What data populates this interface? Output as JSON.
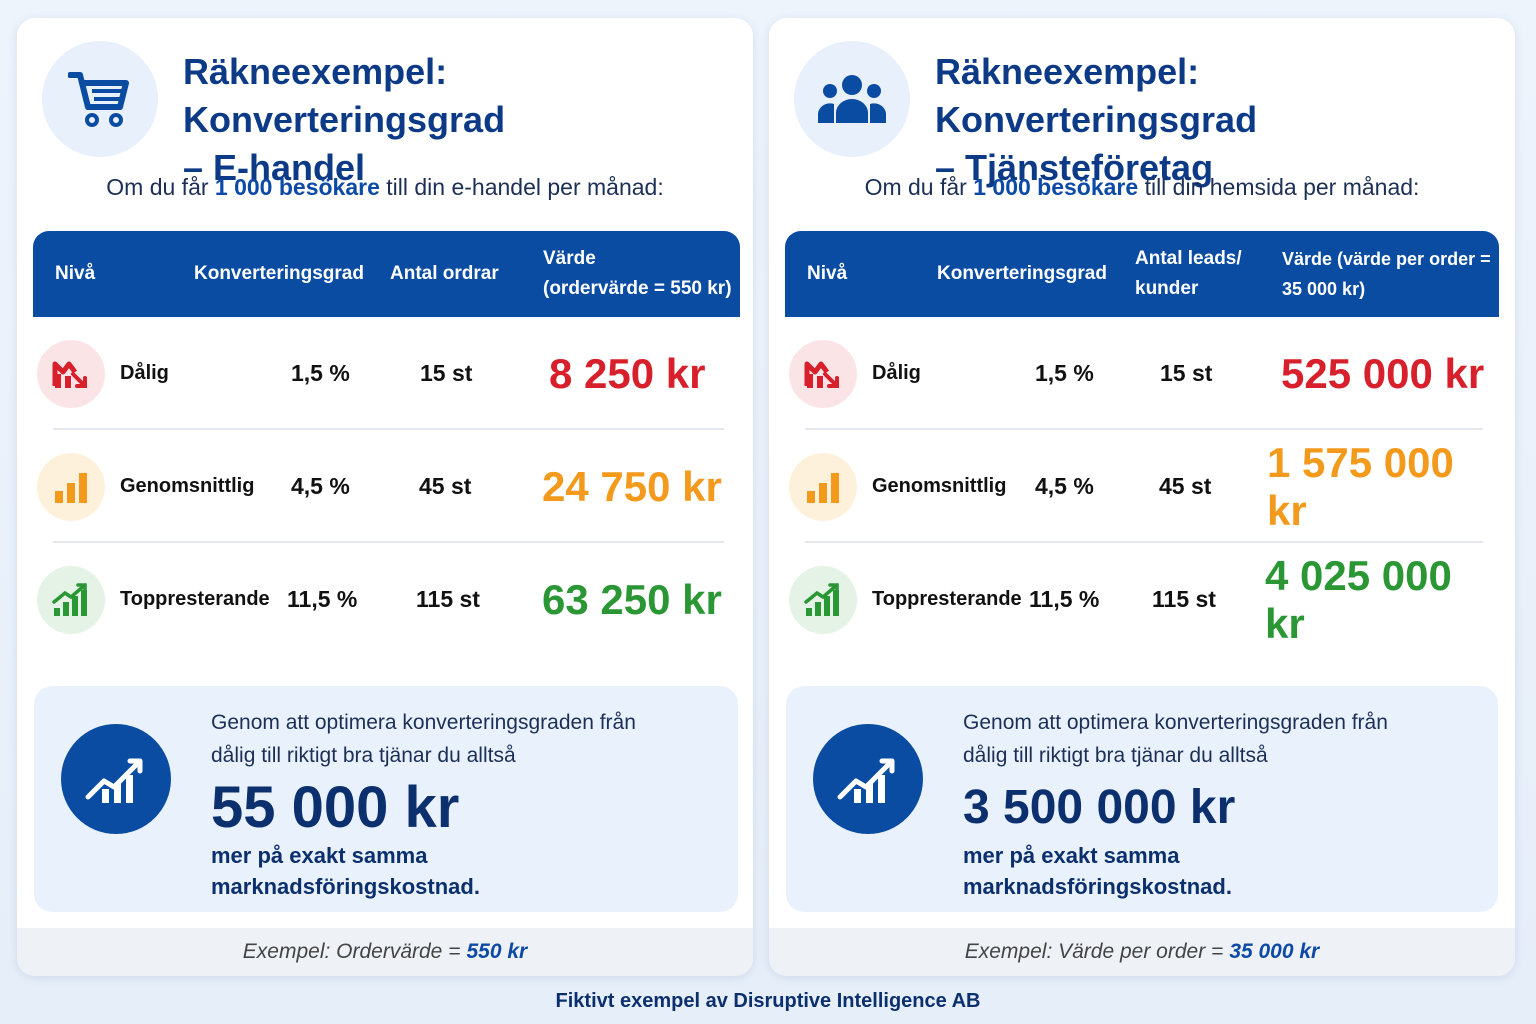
{
  "colors": {
    "brand": "#0b4ca3",
    "bad": "#d7202b",
    "average": "#f39a1c",
    "top": "#2a9634"
  },
  "ehandel": {
    "icon": "cart-icon",
    "title_line1": "Räkneexempel: Konverteringsgrad",
    "title_line2": "– E-handel",
    "intro_pre": "Om du får",
    "intro_highlight": "1 000 besökare",
    "intro_post": "till din e-handel per månad:",
    "columns": {
      "level": "Nivå",
      "rate": "Konverteringsgrad",
      "count_line1": "Antal ordrar",
      "count_line2": "",
      "value_line1": "Värde",
      "value_line2": "(ordervärde = 550 kr)"
    },
    "rows": [
      {
        "level": "Dålig",
        "rate": "1,5 %",
        "count": "15 st",
        "value": "8 250 kr"
      },
      {
        "level": "Genomsnittlig",
        "rate": "4,5 %",
        "count": "45 st",
        "value": "24 750 kr"
      },
      {
        "level": "Toppresterande",
        "rate": "11,5 %",
        "count": "115 st",
        "value": "63 250 kr"
      }
    ],
    "summary_line1": "Genom att optimera konverteringsgraden från",
    "summary_line2": "dålig till riktigt bra tjänar du alltså",
    "summary_amount": "55 000 kr",
    "summary_note_line1": "mer på exakt samma",
    "summary_note_line2": "marknadsföringskostnad.",
    "footer_label": "Exempel: Ordervärde =",
    "footer_value": "550 kr"
  },
  "tjanste": {
    "icon": "people-group-icon",
    "title_line1": "Räkneexempel: Konverteringsgrad",
    "title_line2": "– Tjänsteföretag",
    "intro_pre": "Om du får",
    "intro_highlight": "1 000 besökare",
    "intro_post": "till din hemsida per månad:",
    "columns": {
      "level": "Nivå",
      "rate": "Konverteringsgrad",
      "count_line1": "Antal leads/",
      "count_line2": "kunder",
      "value_line1": "Värde (värde per order =",
      "value_line2": "35 000 kr)"
    },
    "rows": [
      {
        "level": "Dålig",
        "rate": "1,5 %",
        "count": "15 st",
        "value": "525 000 kr"
      },
      {
        "level": "Genomsnittlig",
        "rate": "4,5 %",
        "count": "45 st",
        "value": "1 575 000 kr"
      },
      {
        "level": "Toppresterande",
        "rate": "11,5 %",
        "count": "115 st",
        "value": "4 025 000 kr"
      }
    ],
    "summary_line1": "Genom att optimera konverteringsgraden från",
    "summary_line2": "dålig till riktigt bra tjänar du alltså",
    "summary_amount": "3 500 000 kr",
    "summary_note_line1": "mer på exakt samma",
    "summary_note_line2": "marknadsföringskostnad.",
    "footer_label": "Exempel: Värde per order =",
    "footer_value": "35 000 kr"
  },
  "credit": "Fiktivt exempel av Disruptive Intelligence AB"
}
